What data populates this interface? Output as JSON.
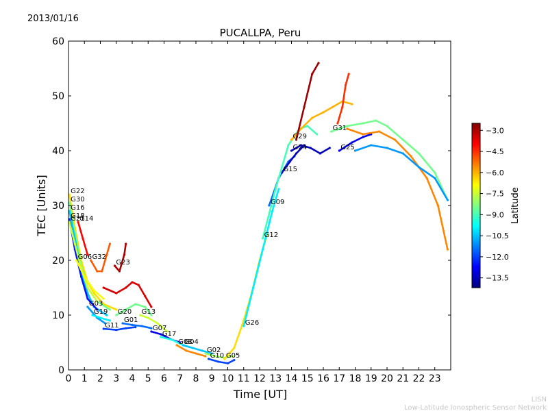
{
  "date_label": "2013/01/16",
  "footer": {
    "line1": "LISN",
    "line2": "Low-Latitude Ionospheric Sensor Network"
  },
  "chart_data": {
    "type": "scatter",
    "title": "PUCALLPA, Peru",
    "xlabel": "Time [UT]",
    "ylabel": "TEC [Units]",
    "xlim": [
      0,
      24
    ],
    "ylim": [
      0,
      60
    ],
    "x_ticks": [
      0,
      1,
      2,
      3,
      4,
      5,
      6,
      7,
      8,
      9,
      10,
      11,
      12,
      13,
      14,
      15,
      16,
      17,
      18,
      19,
      20,
      21,
      22,
      23
    ],
    "y_ticks": [
      0,
      10,
      20,
      30,
      40,
      50,
      60
    ],
    "grid": false,
    "colorbar": {
      "label": "Latitude",
      "range": [
        -14.2,
        -2.5
      ],
      "ticks": [
        -3.0,
        -4.5,
        -6.0,
        -7.5,
        -9.0,
        -10.5,
        -12.0,
        -13.5
      ],
      "colormap": "jet"
    },
    "series": [
      {
        "name": "G22",
        "lat": -6.5,
        "points": [
          [
            0.05,
            32
          ],
          [
            0.4,
            26
          ],
          [
            0.8,
            20
          ],
          [
            1.2,
            16
          ],
          [
            1.6,
            14
          ],
          [
            2.2,
            12
          ],
          [
            3.0,
            11
          ]
        ]
      },
      {
        "name": "G30",
        "lat": -8.5,
        "points": [
          [
            0.05,
            30.5
          ],
          [
            0.4,
            25
          ],
          [
            0.8,
            19
          ],
          [
            1.2,
            15
          ],
          [
            1.8,
            12.5
          ],
          [
            2.6,
            11
          ]
        ]
      },
      {
        "name": "G16",
        "lat": -10.5,
        "points": [
          [
            0.05,
            29
          ],
          [
            0.4,
            24
          ],
          [
            0.8,
            18
          ],
          [
            1.2,
            14
          ],
          [
            1.6,
            11.5
          ],
          [
            2.4,
            10
          ]
        ]
      },
      {
        "name": "G18",
        "lat": -12.5,
        "points": [
          [
            0.05,
            27.5
          ],
          [
            0.4,
            22
          ],
          [
            0.8,
            17
          ],
          [
            1.2,
            13
          ],
          [
            1.8,
            11
          ]
        ]
      },
      {
        "name": "G21",
        "lat": -7.5,
        "points": [
          [
            0.05,
            27
          ],
          [
            0.4,
            23
          ],
          [
            0.8,
            18.5
          ],
          [
            1.2,
            15
          ],
          [
            1.8,
            12.5
          ]
        ]
      },
      {
        "name": "G14",
        "lat": -4.0,
        "points": [
          [
            0.6,
            27
          ],
          [
            0.9,
            24
          ],
          [
            1.2,
            21
          ]
        ]
      },
      {
        "name": "G06",
        "lat": -7.0,
        "points": [
          [
            0.5,
            20
          ],
          [
            1.0,
            17
          ],
          [
            1.6,
            14.5
          ],
          [
            2.2,
            13
          ]
        ]
      },
      {
        "name": "G32",
        "lat": -5.0,
        "points": [
          [
            1.4,
            20
          ],
          [
            1.8,
            18
          ],
          [
            2.1,
            18
          ],
          [
            2.4,
            21
          ],
          [
            2.6,
            23
          ]
        ]
      },
      {
        "name": "G03",
        "lat": -11.0,
        "points": [
          [
            1.2,
            11.5
          ],
          [
            1.8,
            9.5
          ],
          [
            2.3,
            8.5
          ]
        ]
      },
      {
        "name": "G19",
        "lat": -10.0,
        "points": [
          [
            1.5,
            10
          ],
          [
            2.0,
            9.5
          ],
          [
            2.6,
            9
          ]
        ]
      },
      {
        "name": "G23",
        "lat": -3.0,
        "points": [
          [
            2.9,
            19
          ],
          [
            3.2,
            18
          ],
          [
            3.5,
            21
          ],
          [
            3.6,
            23
          ]
        ]
      },
      {
        "name": "G11",
        "lat": -12.0,
        "points": [
          [
            2.2,
            7.5
          ],
          [
            3.0,
            7.3
          ],
          [
            3.6,
            7.6
          ],
          [
            4.2,
            7.8
          ]
        ]
      },
      {
        "name": "G20",
        "lat": -8.5,
        "points": [
          [
            3.0,
            10
          ],
          [
            3.6,
            11
          ],
          [
            4.2,
            12
          ],
          [
            4.8,
            11.5
          ],
          [
            5.2,
            10
          ]
        ]
      },
      {
        "name": "G01",
        "lat": -11.5,
        "points": [
          [
            3.4,
            8.5
          ],
          [
            4.0,
            8.2
          ],
          [
            4.6,
            8
          ],
          [
            5.2,
            7.6
          ]
        ]
      },
      {
        "name": "G13",
        "lat": -7.5,
        "points": [
          [
            4.5,
            10
          ],
          [
            5.0,
            9.5
          ],
          [
            5.6,
            8.5
          ],
          [
            6.2,
            7
          ]
        ]
      },
      {
        "name": "G07",
        "lat": -13.0,
        "points": [
          [
            5.2,
            7
          ],
          [
            5.8,
            6.5
          ],
          [
            6.5,
            5.5
          ],
          [
            7.0,
            5
          ]
        ]
      },
      {
        "name": "G17",
        "lat": -9.5,
        "points": [
          [
            5.8,
            6
          ],
          [
            6.5,
            5.5
          ],
          [
            7.2,
            4.5
          ],
          [
            7.8,
            4
          ]
        ]
      },
      {
        "name": "G08",
        "lat": -5.5,
        "points": [
          [
            6.8,
            4.5
          ],
          [
            7.4,
            3.5
          ],
          [
            8.0,
            3
          ],
          [
            8.6,
            2.5
          ]
        ]
      },
      {
        "name": "G04",
        "lat": -10.5,
        "points": [
          [
            7.2,
            4.5
          ],
          [
            7.8,
            4
          ],
          [
            8.4,
            3.5
          ],
          [
            9.0,
            3
          ]
        ]
      },
      {
        "name": "G02",
        "lat": -8.0,
        "points": [
          [
            8.6,
            3
          ],
          [
            9.2,
            2.5
          ],
          [
            9.8,
            2.2
          ],
          [
            10.3,
            2.5
          ]
        ]
      },
      {
        "name": "G10",
        "lat": -12.0,
        "points": [
          [
            8.8,
            2
          ],
          [
            9.4,
            1.5
          ],
          [
            10.0,
            1.2
          ],
          [
            10.4,
            1.8
          ]
        ]
      },
      {
        "name": "G05",
        "lat": -6.5,
        "points": [
          [
            9.8,
            2
          ],
          [
            10.4,
            4
          ],
          [
            11.0,
            9
          ],
          [
            11.5,
            14
          ],
          [
            12.0,
            20
          ],
          [
            12.5,
            25
          ]
        ]
      },
      {
        "name": "G26",
        "lat": -10.0,
        "points": [
          [
            11.0,
            8
          ],
          [
            11.6,
            15
          ],
          [
            12.2,
            22
          ],
          [
            12.8,
            29
          ],
          [
            13.2,
            33
          ]
        ]
      },
      {
        "name": "G09",
        "lat": -11.5,
        "points": [
          [
            12.6,
            30
          ],
          [
            13.2,
            35
          ],
          [
            13.8,
            38
          ],
          [
            14.2,
            39
          ]
        ]
      },
      {
        "name": "G15",
        "lat": -13.5,
        "points": [
          [
            13.4,
            36
          ],
          [
            13.9,
            38
          ],
          [
            14.3,
            39.5
          ],
          [
            14.8,
            41
          ]
        ]
      },
      {
        "name": "G12",
        "lat": -9.0,
        "points": [
          [
            12.2,
            24
          ],
          [
            13.0,
            33
          ],
          [
            13.8,
            41
          ],
          [
            14.5,
            44
          ],
          [
            15.0,
            44.5
          ],
          [
            15.6,
            43
          ]
        ]
      },
      {
        "name": "G24",
        "lat": -13.5,
        "points": [
          [
            14.0,
            40
          ],
          [
            14.6,
            41
          ],
          [
            15.2,
            40.5
          ],
          [
            15.8,
            39.5
          ],
          [
            16.4,
            40.5
          ]
        ]
      },
      {
        "name": "G29",
        "lat": -6.0,
        "points": [
          [
            14.0,
            42
          ],
          [
            14.6,
            44
          ],
          [
            15.3,
            46
          ],
          [
            16.0,
            47
          ],
          [
            16.6,
            48
          ],
          [
            17.2,
            49
          ],
          [
            17.8,
            48.5
          ]
        ]
      },
      {
        "name": "G25",
        "lat": -13.0,
        "points": [
          [
            17.0,
            40
          ],
          [
            17.8,
            41.5
          ],
          [
            18.5,
            42.5
          ],
          [
            19.0,
            43
          ]
        ]
      },
      {
        "name": "G31",
        "lat": -8.5,
        "points": [
          [
            16.5,
            43.5
          ],
          [
            17.5,
            44.5
          ],
          [
            18.5,
            45
          ],
          [
            19.3,
            45.5
          ],
          [
            20.0,
            44.5
          ],
          [
            21.0,
            42
          ],
          [
            22.0,
            39.5
          ],
          [
            23.0,
            36
          ],
          [
            23.8,
            31
          ]
        ]
      },
      {
        "name": "",
        "lat": -2.8,
        "points": [
          [
            14.3,
            42
          ],
          [
            14.8,
            48
          ],
          [
            15.3,
            54
          ],
          [
            15.7,
            56
          ]
        ]
      },
      {
        "name": "",
        "lat": -4.5,
        "points": [
          [
            16.9,
            45
          ],
          [
            17.2,
            48
          ],
          [
            17.4,
            52
          ],
          [
            17.6,
            54
          ]
        ]
      },
      {
        "name": "",
        "lat": -5.5,
        "points": [
          [
            17.5,
            44
          ],
          [
            18.5,
            43
          ],
          [
            19.5,
            43.5
          ],
          [
            20.5,
            42
          ],
          [
            21.5,
            39
          ],
          [
            22.5,
            35
          ],
          [
            23.2,
            30
          ],
          [
            23.8,
            22
          ]
        ]
      },
      {
        "name": "",
        "lat": -11.0,
        "points": [
          [
            18.0,
            40
          ],
          [
            19.0,
            41
          ],
          [
            20.0,
            40.5
          ],
          [
            21.0,
            39.5
          ],
          [
            22.0,
            37
          ],
          [
            23.0,
            35
          ],
          [
            23.8,
            31
          ]
        ]
      },
      {
        "name": "",
        "lat": -3.5,
        "points": [
          [
            2.2,
            15
          ],
          [
            3.0,
            14
          ],
          [
            3.6,
            15
          ],
          [
            4.0,
            16
          ],
          [
            4.4,
            15.5
          ],
          [
            4.8,
            13.5
          ],
          [
            5.2,
            11.5
          ]
        ]
      }
    ]
  }
}
